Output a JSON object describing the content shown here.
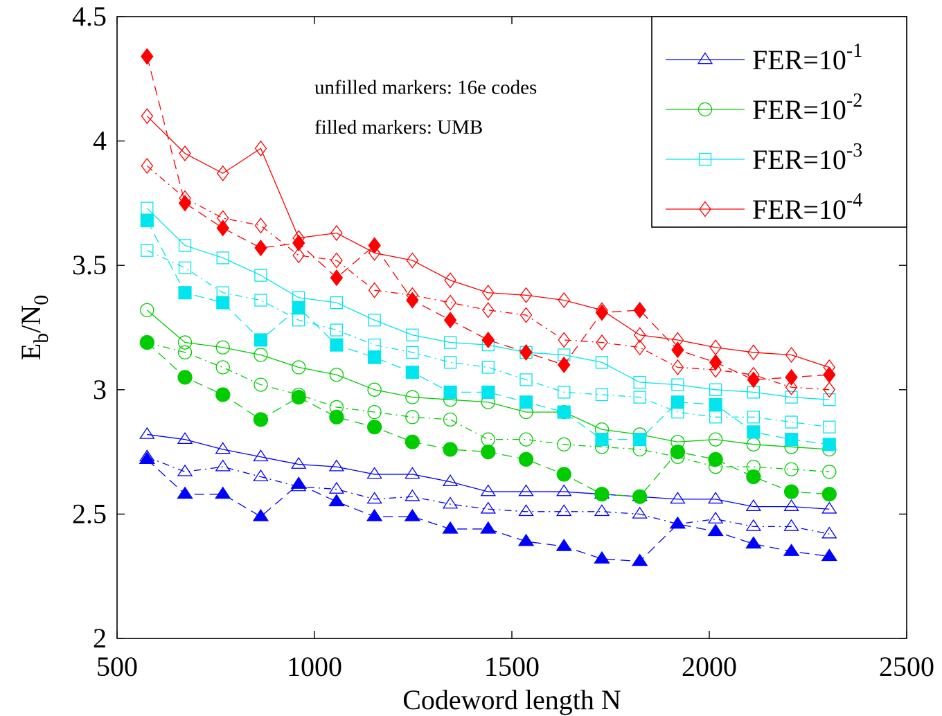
{
  "chart_data": {
    "type": "line",
    "xlabel": "Codeword length N",
    "ylabel": "E_b/N_0",
    "ylabel_parts": {
      "main1": "E",
      "sub1": "b",
      "sep": "/N",
      "sub2": "0"
    },
    "xlim": [
      500,
      2500
    ],
    "ylim": [
      2,
      4.5
    ],
    "xticks": [
      500,
      1000,
      1500,
      2000,
      2500
    ],
    "xtick_labels": [
      "500",
      "1000",
      "1500",
      "2000",
      "2500"
    ],
    "yticks": [
      2,
      2.5,
      3,
      3.5,
      4,
      4.5
    ],
    "ytick_labels": [
      "2",
      "2.5",
      "3",
      "3.5",
      "4",
      "4.5"
    ],
    "grid": false,
    "legend_position": "top-right",
    "annotations": [
      "unfilled markers: 16e codes",
      "filled markers: UMB"
    ],
    "legend": [
      {
        "base": "FER=10",
        "exponent": "-1",
        "color": "#0000ff",
        "marker": "triangle"
      },
      {
        "base": "FER=10",
        "exponent": "-2",
        "color": "#00cc00",
        "marker": "circle"
      },
      {
        "base": "FER=10",
        "exponent": "-3",
        "color": "#00e5ee",
        "marker": "square"
      },
      {
        "base": "FER=10",
        "exponent": "-4",
        "color": "#ff0000",
        "marker": "diamond"
      }
    ],
    "x": [
      576,
      672,
      768,
      864,
      960,
      1056,
      1152,
      1248,
      1344,
      1440,
      1536,
      1632,
      1728,
      1824,
      1920,
      2016,
      2112,
      2208,
      2304
    ],
    "series": [
      {
        "color": "#0000ff",
        "marker": "triangle",
        "filled": false,
        "line": "solid",
        "values": [
          2.82,
          2.8,
          2.76,
          2.73,
          2.7,
          2.69,
          2.66,
          2.66,
          2.63,
          2.59,
          2.59,
          2.59,
          2.58,
          2.57,
          2.56,
          2.56,
          2.53,
          2.53,
          2.52
        ]
      },
      {
        "color": "#0000ff",
        "marker": "triangle",
        "filled": false,
        "line": "dash-dot",
        "values": [
          2.73,
          2.67,
          2.69,
          2.65,
          2.61,
          2.6,
          2.56,
          2.57,
          2.54,
          2.52,
          2.51,
          2.51,
          2.51,
          2.5,
          2.46,
          2.48,
          2.45,
          2.45,
          2.42
        ]
      },
      {
        "color": "#0000ff",
        "marker": "triangle",
        "filled": true,
        "line": "dashed",
        "values": [
          2.72,
          2.58,
          2.58,
          2.49,
          2.62,
          2.55,
          2.49,
          2.49,
          2.44,
          2.44,
          2.39,
          2.37,
          2.32,
          2.31,
          2.46,
          2.43,
          2.38,
          2.35,
          2.33
        ]
      },
      {
        "color": "#00cc00",
        "marker": "circle",
        "filled": false,
        "line": "solid",
        "values": [
          3.32,
          3.19,
          3.17,
          3.14,
          3.09,
          3.06,
          3.0,
          2.97,
          2.96,
          2.95,
          2.91,
          2.91,
          2.84,
          2.82,
          2.79,
          2.8,
          2.78,
          2.77,
          2.76
        ]
      },
      {
        "color": "#00cc00",
        "marker": "circle",
        "filled": false,
        "line": "dash-dot",
        "values": [
          3.19,
          3.15,
          3.09,
          3.02,
          2.98,
          2.93,
          2.91,
          2.89,
          2.88,
          2.8,
          2.8,
          2.78,
          2.77,
          2.76,
          2.73,
          2.69,
          2.69,
          2.68,
          2.67
        ]
      },
      {
        "color": "#00cc00",
        "marker": "circle",
        "filled": true,
        "line": "dashed",
        "values": [
          3.19,
          3.05,
          2.98,
          2.88,
          2.97,
          2.89,
          2.85,
          2.79,
          2.76,
          2.75,
          2.72,
          2.66,
          2.58,
          2.57,
          2.75,
          2.72,
          2.65,
          2.59,
          2.58
        ]
      },
      {
        "color": "#00e5ee",
        "marker": "square",
        "filled": false,
        "line": "solid",
        "values": [
          3.73,
          3.58,
          3.53,
          3.46,
          3.37,
          3.35,
          3.28,
          3.22,
          3.19,
          3.18,
          3.15,
          3.14,
          3.11,
          3.03,
          3.02,
          3.0,
          2.99,
          2.97,
          2.96
        ]
      },
      {
        "color": "#00e5ee",
        "marker": "square",
        "filled": false,
        "line": "dash-dot",
        "values": [
          3.56,
          3.49,
          3.39,
          3.36,
          3.28,
          3.24,
          3.18,
          3.15,
          3.11,
          3.09,
          3.04,
          2.99,
          2.98,
          2.97,
          2.91,
          2.89,
          2.89,
          2.87,
          2.85
        ]
      },
      {
        "color": "#00e5ee",
        "marker": "square",
        "filled": true,
        "line": "dashed",
        "values": [
          3.68,
          3.39,
          3.35,
          3.2,
          3.33,
          3.18,
          3.13,
          3.07,
          2.99,
          2.99,
          2.95,
          2.91,
          2.8,
          2.8,
          2.95,
          2.94,
          2.83,
          2.8,
          2.78
        ]
      },
      {
        "color": "#ff0000",
        "marker": "diamond",
        "filled": false,
        "line": "solid",
        "values": [
          4.1,
          3.95,
          3.87,
          3.97,
          3.61,
          3.63,
          3.55,
          3.52,
          3.44,
          3.39,
          3.38,
          3.36,
          3.32,
          3.22,
          3.2,
          3.17,
          3.15,
          3.14,
          3.09
        ]
      },
      {
        "color": "#ff0000",
        "marker": "diamond",
        "filled": false,
        "line": "dash-dot",
        "values": [
          3.9,
          3.77,
          3.69,
          3.66,
          3.54,
          3.52,
          3.4,
          3.38,
          3.35,
          3.32,
          3.3,
          3.2,
          3.19,
          3.17,
          3.09,
          3.08,
          3.06,
          3.01,
          3.0
        ]
      },
      {
        "color": "#ff0000",
        "marker": "diamond",
        "filled": true,
        "line": "dashed",
        "values": [
          4.34,
          3.75,
          3.65,
          3.57,
          3.59,
          3.45,
          3.58,
          3.36,
          3.28,
          3.2,
          3.15,
          3.1,
          3.31,
          3.32,
          3.16,
          3.11,
          3.04,
          3.05,
          3.06
        ]
      }
    ]
  }
}
